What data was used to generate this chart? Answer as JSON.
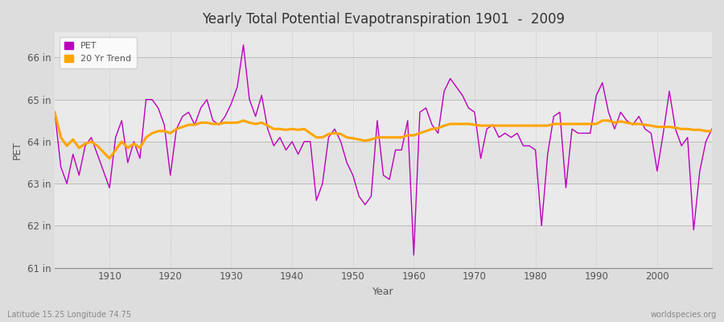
{
  "title": "Yearly Total Potential Evapotranspiration 1901  -  2009",
  "xlabel": "Year",
  "ylabel": "PET",
  "footnote_left": "Latitude 15.25 Longitude 74.75",
  "footnote_right": "worldspecies.org",
  "pet_color": "#bb00bb",
  "trend_color": "#ffa500",
  "fig_bg_color": "#dddddd",
  "plot_bg_color": "#e8e8e8",
  "ylim": [
    61,
    66.6
  ],
  "yticks": [
    61,
    62,
    63,
    64,
    65,
    66
  ],
  "ytick_labels": [
    "61 in",
    "62 in",
    "63 in",
    "64 in",
    "65 in",
    "66 in"
  ],
  "years": [
    1901,
    1902,
    1903,
    1904,
    1905,
    1906,
    1907,
    1908,
    1909,
    1910,
    1911,
    1912,
    1913,
    1914,
    1915,
    1916,
    1917,
    1918,
    1919,
    1920,
    1921,
    1922,
    1923,
    1924,
    1925,
    1926,
    1927,
    1928,
    1929,
    1930,
    1931,
    1932,
    1933,
    1934,
    1935,
    1936,
    1937,
    1938,
    1939,
    1940,
    1941,
    1942,
    1943,
    1944,
    1945,
    1946,
    1947,
    1948,
    1949,
    1950,
    1951,
    1952,
    1953,
    1954,
    1955,
    1956,
    1957,
    1958,
    1959,
    1960,
    1961,
    1962,
    1963,
    1964,
    1965,
    1966,
    1967,
    1968,
    1969,
    1970,
    1971,
    1972,
    1973,
    1974,
    1975,
    1976,
    1977,
    1978,
    1979,
    1980,
    1981,
    1982,
    1983,
    1984,
    1985,
    1986,
    1987,
    1988,
    1989,
    1990,
    1991,
    1992,
    1993,
    1994,
    1995,
    1996,
    1997,
    1998,
    1999,
    2000,
    2001,
    2002,
    2003,
    2004,
    2005,
    2006,
    2007,
    2008,
    2009
  ],
  "pet_values": [
    64.7,
    63.4,
    63.0,
    63.7,
    63.2,
    63.9,
    64.1,
    63.7,
    63.3,
    62.9,
    64.1,
    64.5,
    63.5,
    64.0,
    63.6,
    65.0,
    65.0,
    64.8,
    64.4,
    63.2,
    64.3,
    64.6,
    64.7,
    64.4,
    64.8,
    65.0,
    64.5,
    64.4,
    64.6,
    64.9,
    65.3,
    66.3,
    65.0,
    64.6,
    65.1,
    64.3,
    63.9,
    64.1,
    63.8,
    64.0,
    63.7,
    64.0,
    64.0,
    62.6,
    63.0,
    64.1,
    64.3,
    64.0,
    63.5,
    63.2,
    62.7,
    62.5,
    62.7,
    64.5,
    63.2,
    63.1,
    63.8,
    63.8,
    64.5,
    61.3,
    64.7,
    64.8,
    64.4,
    64.2,
    65.2,
    65.5,
    65.3,
    65.1,
    64.8,
    64.7,
    63.6,
    64.3,
    64.4,
    64.1,
    64.2,
    64.1,
    64.2,
    63.9,
    63.9,
    63.8,
    62.0,
    63.7,
    64.6,
    64.7,
    62.9,
    64.3,
    64.2,
    64.2,
    64.2,
    65.1,
    65.4,
    64.7,
    64.3,
    64.7,
    64.5,
    64.4,
    64.6,
    64.3,
    64.2,
    63.3,
    64.2,
    65.2,
    64.3,
    63.9,
    64.1,
    61.9,
    63.3,
    64.0,
    64.3
  ],
  "trend_years": [
    1901,
    1902,
    1903,
    1904,
    1905,
    1906,
    1907,
    1908,
    1909,
    1910,
    1911,
    1912,
    1913,
    1914,
    1915,
    1916,
    1917,
    1918,
    1919,
    1920,
    1921,
    1922,
    1923,
    1924,
    1925,
    1926,
    1927,
    1928,
    1929,
    1930,
    1931,
    1932,
    1933,
    1934,
    1935,
    1936,
    1937,
    1938,
    1939,
    1940,
    1941,
    1942,
    1943,
    1944,
    1945,
    1946,
    1947,
    1948,
    1949,
    1950,
    1951,
    1952,
    1953,
    1954,
    1955,
    1956,
    1957,
    1958,
    1959,
    1960,
    1961,
    1962,
    1963,
    1964,
    1965,
    1966,
    1967,
    1968,
    1969,
    1970,
    1971,
    1972,
    1973,
    1974,
    1975,
    1976,
    1977,
    1978,
    1979,
    1980,
    1981,
    1982,
    1983,
    1984,
    1985,
    1986,
    1987,
    1988,
    1989,
    1990,
    1991,
    1992,
    1993,
    1994,
    1995,
    1996,
    1997,
    1998,
    1999,
    2000,
    2001,
    2002,
    2003,
    2004,
    2005,
    2006,
    2007,
    2008,
    2009
  ],
  "trend_values": [
    64.7,
    64.1,
    63.9,
    64.05,
    63.85,
    63.95,
    64.0,
    63.9,
    63.75,
    63.6,
    63.8,
    64.0,
    63.85,
    63.95,
    63.85,
    64.1,
    64.2,
    64.25,
    64.25,
    64.2,
    64.3,
    64.35,
    64.4,
    64.4,
    64.45,
    64.45,
    64.42,
    64.42,
    64.45,
    64.45,
    64.45,
    64.5,
    64.45,
    64.42,
    64.45,
    64.38,
    64.3,
    64.3,
    64.28,
    64.3,
    64.28,
    64.3,
    64.2,
    64.1,
    64.1,
    64.18,
    64.2,
    64.18,
    64.1,
    64.08,
    64.05,
    64.02,
    64.05,
    64.1,
    64.1,
    64.1,
    64.1,
    64.1,
    64.15,
    64.15,
    64.2,
    64.25,
    64.3,
    64.32,
    64.38,
    64.42,
    64.42,
    64.42,
    64.42,
    64.4,
    64.38,
    64.38,
    64.38,
    64.38,
    64.38,
    64.38,
    64.38,
    64.38,
    64.38,
    64.38,
    64.38,
    64.38,
    64.42,
    64.42,
    64.42,
    64.42,
    64.42,
    64.42,
    64.42,
    64.42,
    64.5,
    64.5,
    64.45,
    64.48,
    64.45,
    64.42,
    64.42,
    64.4,
    64.38,
    64.35,
    64.35,
    64.35,
    64.33,
    64.3,
    64.3,
    64.28,
    64.28,
    64.25,
    64.25
  ]
}
